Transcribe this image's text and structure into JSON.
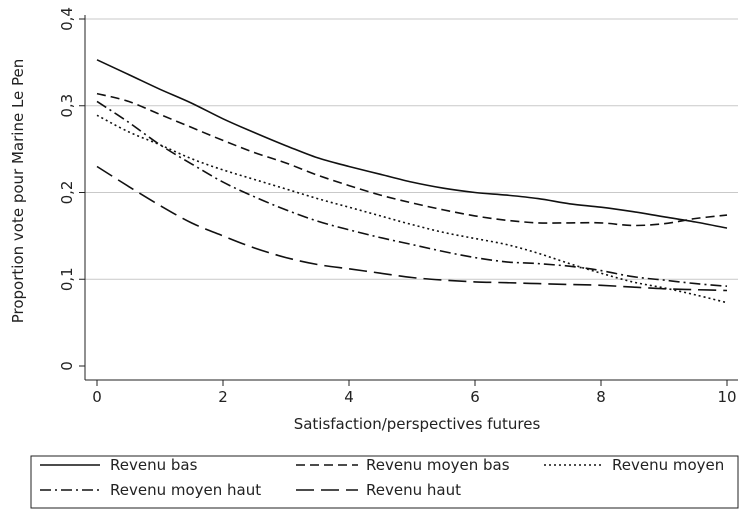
{
  "chart_data": {
    "type": "line",
    "xlabel": "Satisfaction/perspectives futures",
    "ylabel": "Proportion vote pour Marine Le Pen",
    "xlim": [
      0,
      10
    ],
    "ylim": [
      0,
      0.4
    ],
    "xticks": [
      0,
      2,
      4,
      6,
      8,
      10
    ],
    "yticks": [
      0,
      0.1,
      0.2,
      0.3,
      0.4
    ],
    "xtick_labels": [
      "0",
      "2",
      "4",
      "6",
      "8",
      "10"
    ],
    "ytick_labels": [
      "0",
      "0,1",
      "0,2",
      "0,3",
      "0,4"
    ],
    "grid": "horizontal",
    "legend_position": "bottom",
    "series": [
      {
        "name": "Revenu bas",
        "style": "solid",
        "x": [
          0,
          0.5,
          1,
          1.5,
          2,
          2.5,
          3,
          3.5,
          4,
          4.5,
          5,
          5.5,
          6,
          6.5,
          7,
          7.5,
          8,
          8.5,
          9,
          9.5,
          10
        ],
        "y": [
          0.353,
          0.336,
          0.319,
          0.303,
          0.285,
          0.269,
          0.254,
          0.24,
          0.23,
          0.221,
          0.212,
          0.205,
          0.2,
          0.197,
          0.193,
          0.187,
          0.183,
          0.178,
          0.172,
          0.166,
          0.159
        ]
      },
      {
        "name": "Revenu moyen bas",
        "style": "dashed",
        "x": [
          0,
          0.5,
          1,
          1.5,
          2,
          2.5,
          3,
          3.5,
          4,
          4.5,
          5,
          5.5,
          6,
          6.5,
          7,
          7.5,
          8,
          8.5,
          9,
          9.5,
          10
        ],
        "y": [
          0.314,
          0.305,
          0.29,
          0.275,
          0.26,
          0.246,
          0.234,
          0.22,
          0.208,
          0.197,
          0.188,
          0.18,
          0.173,
          0.168,
          0.165,
          0.165,
          0.165,
          0.162,
          0.164,
          0.17,
          0.174
        ]
      },
      {
        "name": "Revenu moyen",
        "style": "dotted",
        "x": [
          0,
          0.5,
          1,
          1.5,
          2,
          2.5,
          3,
          3.5,
          4,
          4.5,
          5,
          5.5,
          6,
          6.5,
          7,
          7.5,
          8,
          8.5,
          9,
          9.5,
          10
        ],
        "y": [
          0.289,
          0.27,
          0.255,
          0.239,
          0.226,
          0.215,
          0.204,
          0.193,
          0.183,
          0.173,
          0.163,
          0.154,
          0.147,
          0.14,
          0.13,
          0.118,
          0.107,
          0.097,
          0.09,
          0.082,
          0.073
        ]
      },
      {
        "name": "Revenu moyen haut",
        "style": "dashdot",
        "x": [
          0,
          0.5,
          1,
          1.5,
          2,
          2.5,
          3,
          3.5,
          4,
          4.5,
          5,
          5.5,
          6,
          6.5,
          7,
          7.5,
          8,
          8.5,
          9,
          9.5,
          10
        ],
        "y": [
          0.305,
          0.281,
          0.255,
          0.233,
          0.212,
          0.195,
          0.18,
          0.167,
          0.157,
          0.148,
          0.14,
          0.132,
          0.125,
          0.12,
          0.118,
          0.115,
          0.11,
          0.103,
          0.099,
          0.095,
          0.092
        ]
      },
      {
        "name": "Revenu haut",
        "style": "longdash",
        "x": [
          0,
          0.5,
          1,
          1.5,
          2,
          2.5,
          3,
          3.5,
          4,
          4.5,
          5,
          5.5,
          6,
          6.5,
          7,
          7.5,
          8,
          8.5,
          9,
          9.5,
          10
        ],
        "y": [
          0.23,
          0.207,
          0.185,
          0.165,
          0.15,
          0.136,
          0.125,
          0.117,
          0.112,
          0.107,
          0.102,
          0.099,
          0.097,
          0.096,
          0.095,
          0.094,
          0.093,
          0.091,
          0.089,
          0.088,
          0.087
        ]
      }
    ]
  }
}
